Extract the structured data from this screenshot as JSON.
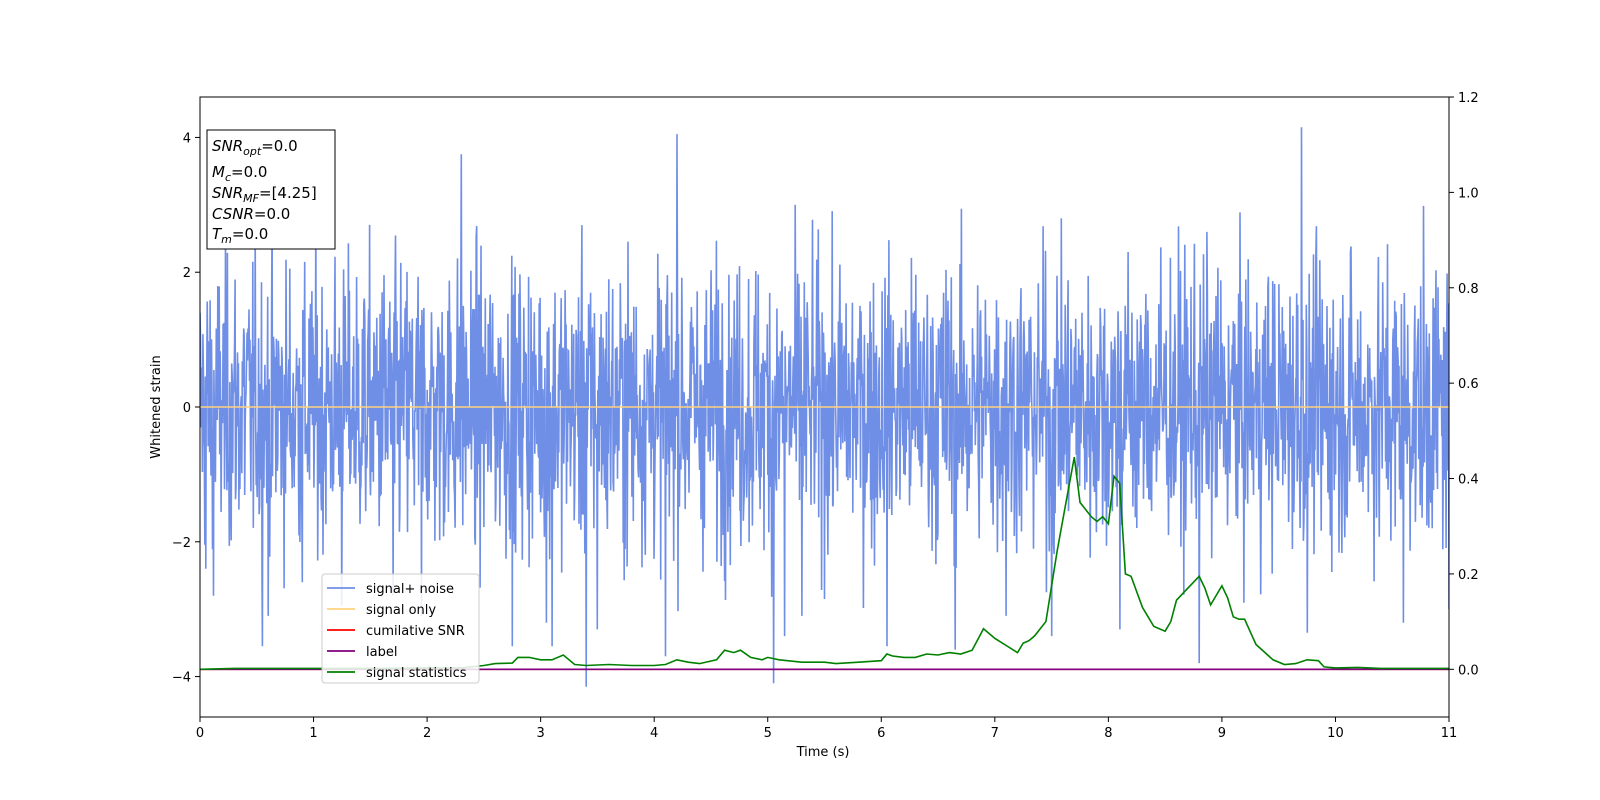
{
  "chart_data": {
    "type": "line",
    "xlabel": "Time (s)",
    "ylabel": "Whitened strain",
    "xlim": [
      0,
      11
    ],
    "ylim": [
      -4.6,
      4.6
    ],
    "y2lim": [
      -0.1,
      1.2
    ],
    "x_ticks": [
      "0",
      "1",
      "2",
      "3",
      "4",
      "5",
      "6",
      "7",
      "8",
      "9",
      "10",
      "11"
    ],
    "y_ticks": [
      "−4",
      "−2",
      "0",
      "2",
      "4"
    ],
    "y2_ticks": [
      "0.0",
      "0.2",
      "0.4",
      "0.6",
      "0.8",
      "1.0",
      "1.2"
    ],
    "grid": false,
    "legend_position": "lower-left",
    "info_box": {
      "snr_opt": {
        "main": "SNR",
        "sub": "opt",
        "value": "=0.0"
      },
      "mc": {
        "main": "M",
        "sub": "c",
        "value": "=0.0"
      },
      "snr_mf": {
        "main": "SNR",
        "sub": "MF",
        "value": "=[4.25]"
      },
      "csnr": {
        "main": "CSNR",
        "value": "=0.0"
      },
      "tm": {
        "main": "T",
        "sub": "m",
        "value": "=0.0"
      }
    },
    "series": [
      {
        "name": "signal+ noise",
        "axis": "left",
        "color": "#6f8ee6",
        "description_values": "random noise between approx -3 and 4",
        "peaks": [
          [
            0.05,
            -2.4
          ],
          [
            0.12,
            -2.8
          ],
          [
            0.55,
            -3.55
          ],
          [
            0.6,
            -3.1
          ],
          [
            0.9,
            -2.6
          ],
          [
            1.25,
            -2.95
          ],
          [
            1.7,
            -2.8
          ],
          [
            1.95,
            -3.1
          ],
          [
            2.3,
            3.75
          ],
          [
            2.75,
            -3.55
          ],
          [
            3.05,
            -3.2
          ],
          [
            3.1,
            -3.55
          ],
          [
            3.4,
            -4.15
          ],
          [
            3.5,
            -3.3
          ],
          [
            4.2,
            4.05
          ],
          [
            4.1,
            -3.7
          ],
          [
            5.05,
            -4.1
          ],
          [
            5.15,
            -3.4
          ],
          [
            5.3,
            -3.1
          ],
          [
            6.05,
            -3.55
          ],
          [
            6.65,
            -3.6
          ],
          [
            7.1,
            -3.1
          ],
          [
            7.5,
            -3.4
          ],
          [
            8.1,
            -3.3
          ],
          [
            8.8,
            -3.8
          ],
          [
            9.7,
            4.15
          ],
          [
            9.75,
            -3.35
          ],
          [
            10.6,
            -3.2
          ],
          [
            11.0,
            -3.0
          ]
        ]
      },
      {
        "name": "signal only",
        "axis": "left",
        "color": "#ffd27f",
        "x": [
          0,
          11
        ],
        "y": [
          0,
          0
        ]
      },
      {
        "name": "cumilative SNR",
        "axis": "right",
        "color": "#ff0000",
        "x": [
          0,
          11
        ],
        "y": [
          0,
          0
        ]
      },
      {
        "name": "label",
        "axis": "right",
        "color": "#800080",
        "x": [
          0,
          11
        ],
        "y": [
          0,
          0
        ]
      },
      {
        "name": "signal statistics",
        "axis": "right",
        "color": "#008000",
        "x": [
          0,
          0.3,
          0.5,
          1.0,
          1.5,
          2.0,
          2.3,
          2.5,
          2.6,
          2.75,
          2.8,
          2.9,
          3.0,
          3.1,
          3.2,
          3.3,
          3.4,
          3.6,
          3.8,
          4.0,
          4.1,
          4.2,
          4.3,
          4.4,
          4.55,
          4.62,
          4.7,
          4.76,
          4.85,
          4.95,
          5.0,
          5.1,
          5.3,
          5.5,
          5.6,
          5.8,
          6.0,
          6.05,
          6.1,
          6.2,
          6.3,
          6.4,
          6.5,
          6.6,
          6.7,
          6.8,
          6.9,
          7.0,
          7.1,
          7.2,
          7.25,
          7.3,
          7.35,
          7.45,
          7.55,
          7.65,
          7.7,
          7.75,
          7.85,
          7.9,
          7.95,
          8.0,
          8.05,
          8.1,
          8.15,
          8.2,
          8.3,
          8.4,
          8.5,
          8.55,
          8.6,
          8.7,
          8.8,
          8.85,
          8.9,
          9.0,
          9.05,
          9.1,
          9.15,
          9.2,
          9.3,
          9.45,
          9.55,
          9.65,
          9.75,
          9.85,
          9.9,
          10.0,
          10.2,
          10.4,
          10.6,
          11.0
        ],
        "y": [
          0,
          0.002,
          0.002,
          0.002,
          0.002,
          0.003,
          0.003,
          0.008,
          0.012,
          0.013,
          0.025,
          0.025,
          0.02,
          0.02,
          0.03,
          0.01,
          0.008,
          0.01,
          0.008,
          0.008,
          0.01,
          0.02,
          0.015,
          0.012,
          0.02,
          0.04,
          0.035,
          0.04,
          0.025,
          0.02,
          0.025,
          0.02,
          0.015,
          0.015,
          0.012,
          0.015,
          0.018,
          0.032,
          0.028,
          0.025,
          0.025,
          0.032,
          0.03,
          0.035,
          0.032,
          0.04,
          0.085,
          0.065,
          0.05,
          0.035,
          0.055,
          0.06,
          0.07,
          0.1,
          0.25,
          0.38,
          0.445,
          0.35,
          0.32,
          0.31,
          0.32,
          0.305,
          0.405,
          0.39,
          0.2,
          0.195,
          0.13,
          0.09,
          0.08,
          0.1,
          0.145,
          0.17,
          0.195,
          0.17,
          0.135,
          0.175,
          0.15,
          0.11,
          0.105,
          0.105,
          0.052,
          0.02,
          0.01,
          0.012,
          0.02,
          0.018,
          0.005,
          0.003,
          0.004,
          0.002,
          0.002,
          0.002
        ]
      }
    ]
  }
}
